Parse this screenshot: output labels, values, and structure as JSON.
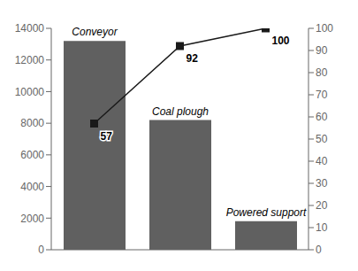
{
  "chart_data": {
    "type": "bar",
    "categories": [
      "Conveyor",
      "Coal plough",
      "Powered support"
    ],
    "series": [
      {
        "type": "bar",
        "color": "#606060",
        "values": [
          13200,
          8200,
          1800
        ]
      },
      {
        "type": "line",
        "axis": "y2",
        "color": "#1a1a1a",
        "marker": "square",
        "values": [
          57,
          92,
          100
        ],
        "data_labels": true
      }
    ],
    "ylim": [
      0,
      14000
    ],
    "yticks": [
      0,
      2000,
      4000,
      6000,
      8000,
      10000,
      12000,
      14000
    ],
    "y2lim": [
      0,
      100
    ],
    "y2ticks": [
      0,
      10,
      20,
      30,
      40,
      50,
      60,
      70,
      80,
      90,
      100
    ],
    "grid": false,
    "tick_labels": "y"
  }
}
